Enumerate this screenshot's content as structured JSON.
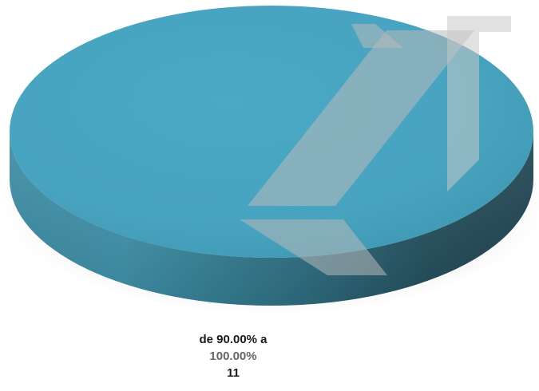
{
  "chart_data": {
    "type": "pie",
    "style": "3d",
    "categories": [
      "de 90.00% a 100.00%"
    ],
    "values": [
      11
    ],
    "percentages": [
      "100.00%"
    ],
    "title": "",
    "legend": "none",
    "data_labels": [
      {
        "category_line1": "de 90.00% a",
        "category_line2": "100.00%",
        "value": "11"
      }
    ],
    "colors": {
      "slice_top": "#4aa7c3",
      "slice_side_dark": "#1f4753",
      "slice_side_light": "#3e8fa6",
      "watermark": "#b9b9b9"
    }
  }
}
